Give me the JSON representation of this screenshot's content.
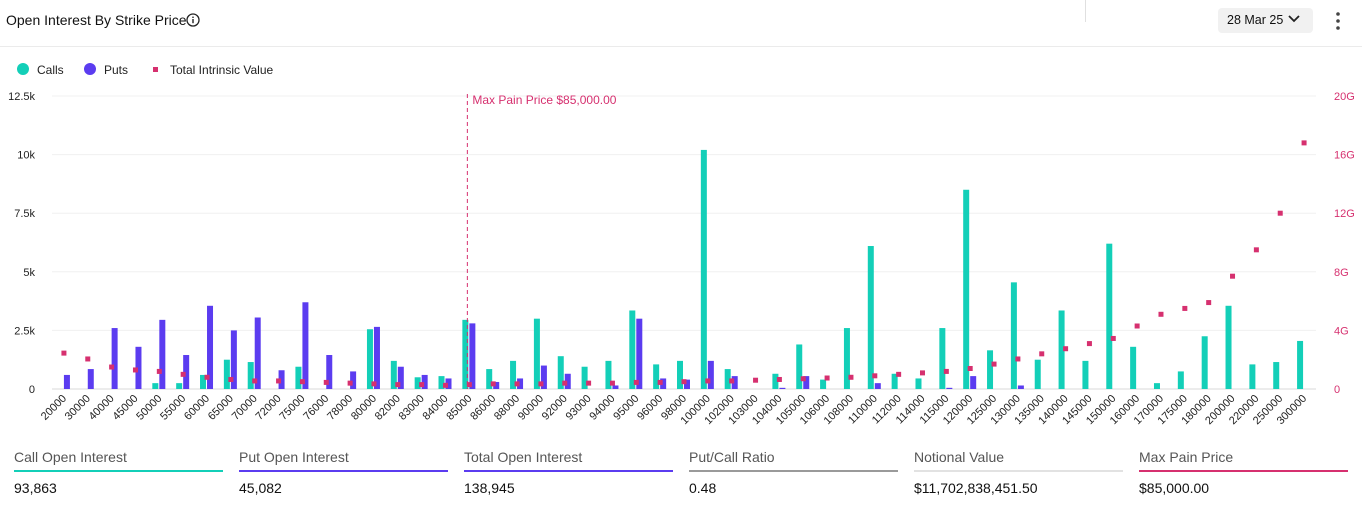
{
  "header": {
    "title": "Open Interest By Strike Price",
    "date_selector": "28 Mar 25"
  },
  "legend": {
    "calls": "Calls",
    "puts": "Puts",
    "intrinsic": "Total Intrinsic Value"
  },
  "colors": {
    "calls": "#13cfb8",
    "puts": "#5b3cf0",
    "intrinsic": "#d6306f",
    "ratio": "#9a9a9a"
  },
  "chart_data": {
    "type": "bar",
    "title": "",
    "annotation": "Max Pain Price $85,000.00",
    "annotation_x": "85000",
    "left_axis": {
      "ticks": [
        "0",
        "2.5k",
        "5k",
        "7.5k",
        "10k",
        "12.5k"
      ],
      "ylim": [
        0,
        12500
      ]
    },
    "right_axis": {
      "ticks": [
        "0",
        "4G",
        "8G",
        "12G",
        "16G",
        "20G"
      ],
      "ylim": [
        0,
        20
      ]
    },
    "categories": [
      "20000",
      "30000",
      "40000",
      "45000",
      "50000",
      "55000",
      "60000",
      "65000",
      "70000",
      "72000",
      "75000",
      "76000",
      "78000",
      "80000",
      "82000",
      "83000",
      "84000",
      "85000",
      "86000",
      "88000",
      "90000",
      "92000",
      "93000",
      "94000",
      "95000",
      "96000",
      "98000",
      "100000",
      "102000",
      "103000",
      "104000",
      "105000",
      "106000",
      "108000",
      "110000",
      "112000",
      "114000",
      "115000",
      "120000",
      "125000",
      "130000",
      "135000",
      "140000",
      "145000",
      "150000",
      "160000",
      "170000",
      "175000",
      "180000",
      "200000",
      "220000",
      "250000",
      "300000"
    ],
    "series": [
      {
        "name": "Calls",
        "axis": "left",
        "values": [
          0,
          0,
          0,
          0,
          250,
          250,
          600,
          1250,
          1150,
          0,
          950,
          0,
          0,
          2550,
          1200,
          500,
          550,
          2950,
          850,
          1200,
          3000,
          1400,
          950,
          1200,
          3350,
          1050,
          1200,
          10200,
          850,
          0,
          650,
          1900,
          400,
          2600,
          6100,
          650,
          450,
          2600,
          8500,
          1650,
          4550,
          1250,
          3350,
          1200,
          6200,
          1800,
          250,
          750,
          2250,
          3550,
          1050,
          1150,
          2050
        ]
      },
      {
        "name": "Puts",
        "axis": "left",
        "values": [
          600,
          850,
          2600,
          1800,
          2950,
          1450,
          3550,
          2500,
          3050,
          800,
          3700,
          1450,
          750,
          2650,
          950,
          600,
          450,
          2800,
          300,
          450,
          1000,
          650,
          0,
          150,
          3000,
          450,
          400,
          1200,
          550,
          0,
          50,
          550,
          0,
          0,
          250,
          0,
          0,
          50,
          550,
          0,
          150,
          0,
          0,
          0,
          0,
          0,
          0,
          0,
          0,
          0,
          0,
          0,
          0
        ]
      },
      {
        "name": "Total Intrinsic Value",
        "axis": "right",
        "unit": "G",
        "values": [
          2.45,
          2.05,
          1.5,
          1.3,
          1.2,
          1.0,
          0.8,
          0.65,
          0.55,
          0.55,
          0.5,
          0.45,
          0.4,
          0.35,
          0.3,
          0.3,
          0.25,
          0.3,
          0.35,
          0.35,
          0.35,
          0.4,
          0.4,
          0.4,
          0.45,
          0.45,
          0.5,
          0.55,
          0.55,
          0.6,
          0.65,
          0.7,
          0.75,
          0.8,
          0.9,
          1.0,
          1.1,
          1.2,
          1.4,
          1.7,
          2.05,
          2.4,
          2.75,
          3.1,
          3.45,
          4.3,
          5.1,
          5.5,
          5.9,
          7.7,
          9.5,
          12.0,
          16.8
        ]
      }
    ]
  },
  "stats": [
    {
      "label": "Call Open Interest",
      "value": "93,863"
    },
    {
      "label": "Put Open Interest",
      "value": "45,082"
    },
    {
      "label": "Total Open Interest",
      "value": "138,945"
    },
    {
      "label": "Put/Call Ratio",
      "value": "0.48"
    },
    {
      "label": "Notional Value",
      "value": "$11,702,838,451.50"
    },
    {
      "label": "Max Pain Price",
      "value": "$85,000.00"
    }
  ]
}
